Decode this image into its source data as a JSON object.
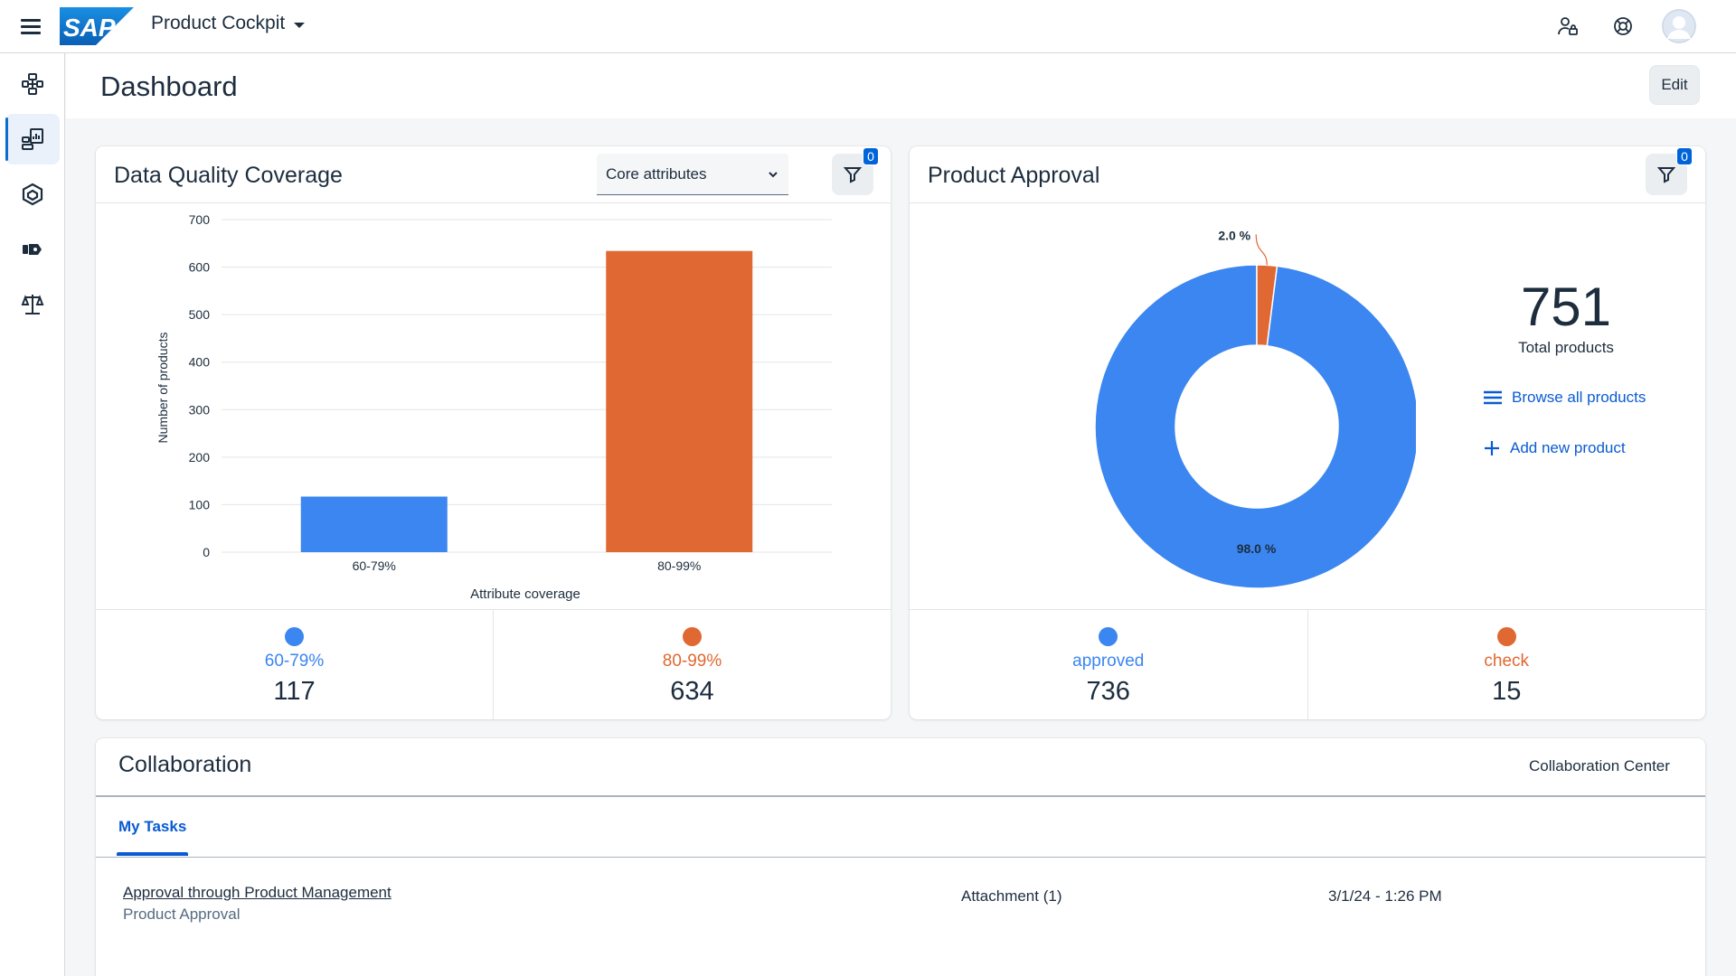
{
  "shell": {
    "logo_text": "SAP",
    "app_title": "Product Cockpit"
  },
  "page": {
    "title": "Dashboard",
    "edit_label": "Edit"
  },
  "data_quality": {
    "title": "Data Quality Coverage",
    "select_value": "Core attributes",
    "filter_count": "0",
    "legend": [
      {
        "label": "60-79%",
        "value": "117",
        "color": "#3b86f0"
      },
      {
        "label": "80-99%",
        "value": "634",
        "color": "#e06832"
      }
    ]
  },
  "product_approval": {
    "title": "Product Approval",
    "filter_count": "0",
    "total_value": "751",
    "total_label": "Total products",
    "browse_label": "Browse all products",
    "add_label": "Add new product",
    "legend": [
      {
        "label": "approved",
        "value": "736",
        "color": "#3b86f0"
      },
      {
        "label": "check",
        "value": "15",
        "color": "#e06832"
      }
    ]
  },
  "collaboration": {
    "title": "Collaboration",
    "center_link": "Collaboration Center",
    "tab_label": "My Tasks",
    "task": {
      "title": "Approval through Product Management",
      "subtitle": "Product Approval",
      "attachment": "Attachment (1)",
      "date": "3/1/24 - 1:26 PM"
    }
  },
  "chart_data": [
    {
      "type": "bar",
      "categories": [
        "60-79%",
        "80-99%"
      ],
      "values": [
        117,
        634
      ],
      "colors": [
        "#3b86f0",
        "#e06832"
      ],
      "xlabel": "Attribute coverage",
      "ylabel": "Number of products",
      "ylim": [
        0,
        700
      ],
      "yticks": [
        0,
        100,
        200,
        300,
        400,
        500,
        600,
        700
      ],
      "grid": true
    },
    {
      "type": "pie",
      "style": "donut",
      "labels": [
        "approved",
        "check"
      ],
      "values": [
        736,
        15
      ],
      "percent_labels": [
        "98.0 %",
        "2.0 %"
      ],
      "colors": [
        "#3b86f0",
        "#e06832"
      ]
    }
  ]
}
